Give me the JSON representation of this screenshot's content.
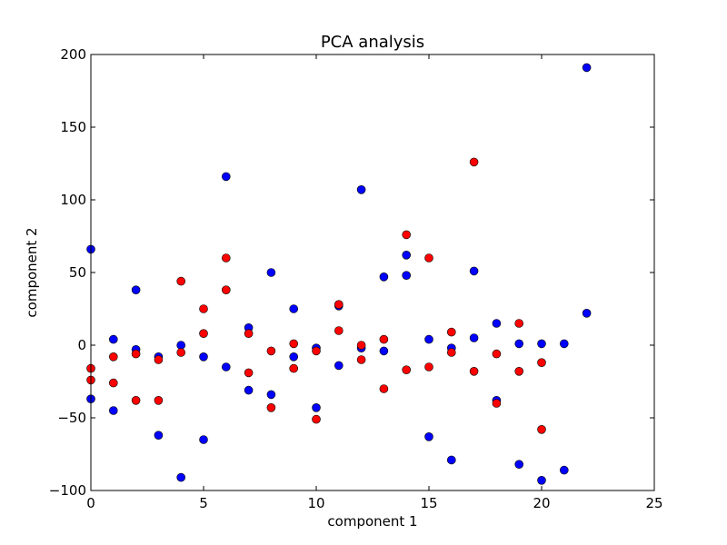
{
  "chart_data": {
    "type": "scatter",
    "title": "PCA analysis",
    "xlabel": "component 1",
    "ylabel": "component 2",
    "xlim": [
      0,
      25
    ],
    "ylim": [
      -100,
      200
    ],
    "xticks": [
      0,
      5,
      10,
      15,
      20,
      25
    ],
    "yticks": [
      -100,
      -50,
      0,
      50,
      100,
      150,
      200
    ],
    "grid": false,
    "legend": null,
    "series": [
      {
        "color": "#0000ff",
        "points": [
          [
            0,
            66
          ],
          [
            0,
            -37
          ],
          [
            1,
            4
          ],
          [
            1,
            -45
          ],
          [
            2,
            38
          ],
          [
            2,
            -3
          ],
          [
            3,
            -8
          ],
          [
            3,
            -62
          ],
          [
            4,
            0
          ],
          [
            4,
            -91
          ],
          [
            5,
            -8
          ],
          [
            5,
            -65
          ],
          [
            6,
            116
          ],
          [
            6,
            -15
          ],
          [
            7,
            12
          ],
          [
            7,
            -31
          ],
          [
            8,
            50
          ],
          [
            8,
            -34
          ],
          [
            9,
            25
          ],
          [
            9,
            -8
          ],
          [
            10,
            -2
          ],
          [
            10,
            -43
          ],
          [
            11,
            27
          ],
          [
            11,
            -14
          ],
          [
            12,
            107
          ],
          [
            12,
            -2
          ],
          [
            13,
            47
          ],
          [
            13,
            -4
          ],
          [
            14,
            62
          ],
          [
            14,
            48
          ],
          [
            15,
            4
          ],
          [
            15,
            -63
          ],
          [
            16,
            -2
          ],
          [
            16,
            -79
          ],
          [
            17,
            51
          ],
          [
            17,
            5
          ],
          [
            18,
            15
          ],
          [
            18,
            -38
          ],
          [
            19,
            1
          ],
          [
            19,
            -82
          ],
          [
            20,
            1
          ],
          [
            20,
            -93
          ],
          [
            21,
            1
          ],
          [
            21,
            -86
          ],
          [
            22,
            191
          ],
          [
            22,
            22
          ]
        ]
      },
      {
        "color": "#ff0000",
        "points": [
          [
            0,
            -16
          ],
          [
            0,
            -24
          ],
          [
            1,
            -8
          ],
          [
            1,
            -26
          ],
          [
            2,
            -6
          ],
          [
            2,
            -38
          ],
          [
            3,
            -10
          ],
          [
            3,
            -38
          ],
          [
            4,
            44
          ],
          [
            4,
            -5
          ],
          [
            5,
            25
          ],
          [
            5,
            8
          ],
          [
            6,
            60
          ],
          [
            6,
            38
          ],
          [
            7,
            8
          ],
          [
            7,
            -19
          ],
          [
            8,
            -4
          ],
          [
            8,
            -43
          ],
          [
            9,
            1
          ],
          [
            9,
            -16
          ],
          [
            10,
            -4
          ],
          [
            10,
            -51
          ],
          [
            11,
            28
          ],
          [
            11,
            10
          ],
          [
            12,
            0
          ],
          [
            12,
            -10
          ],
          [
            13,
            4
          ],
          [
            13,
            -30
          ],
          [
            14,
            76
          ],
          [
            14,
            -17
          ],
          [
            15,
            60
          ],
          [
            15,
            -15
          ],
          [
            16,
            9
          ],
          [
            16,
            -5
          ],
          [
            17,
            126
          ],
          [
            17,
            -18
          ],
          [
            18,
            -6
          ],
          [
            18,
            -40
          ],
          [
            19,
            15
          ],
          [
            19,
            -18
          ],
          [
            20,
            -12
          ],
          [
            20,
            -58
          ]
        ]
      }
    ]
  }
}
